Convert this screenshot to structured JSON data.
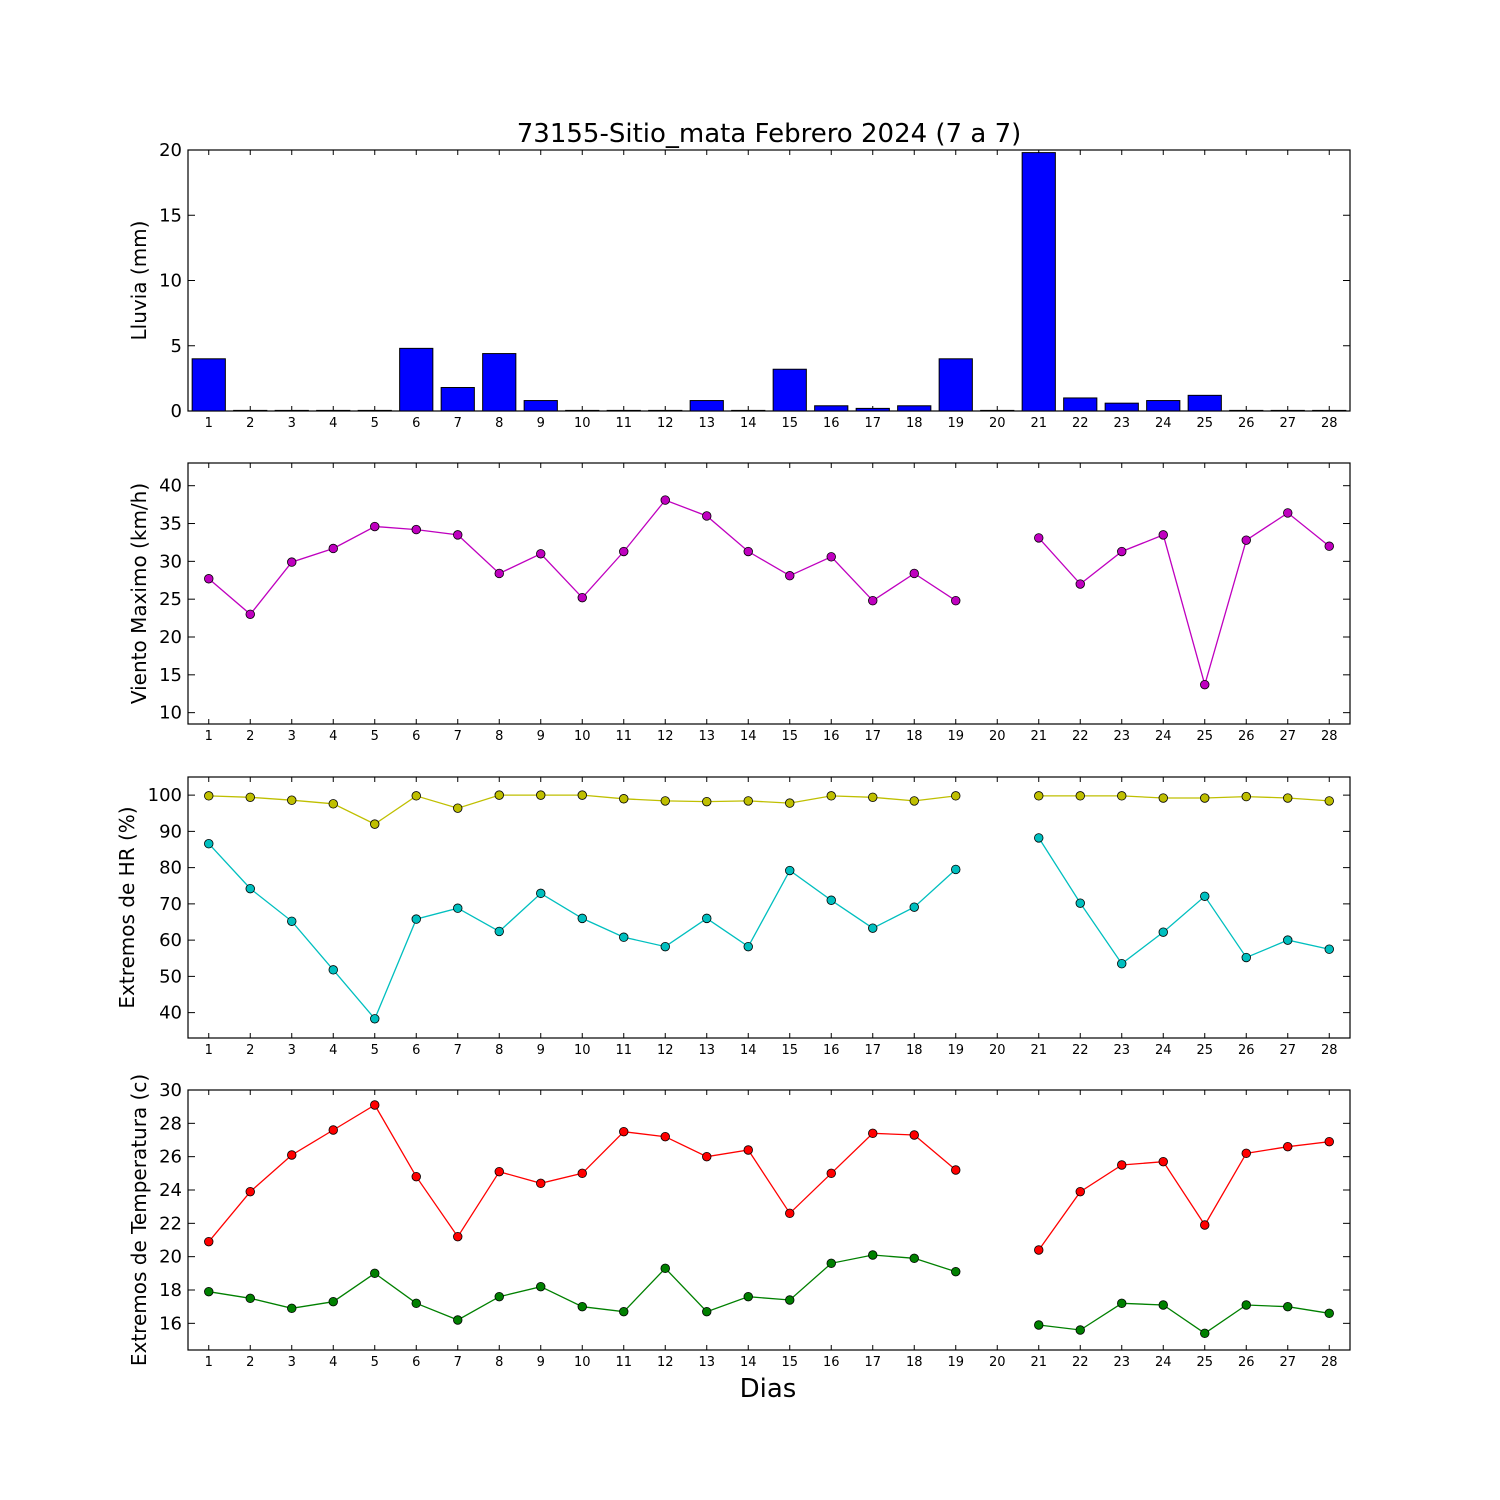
{
  "title": "73155-Sitio_mata Febrero 2024  (7 a 7)",
  "xlabel": "Dias",
  "chart_data": [
    {
      "type": "bar",
      "ylabel": "Lluvia (mm)",
      "ylim": [
        0,
        20
      ],
      "yticks": [
        0,
        5,
        10,
        15,
        20
      ],
      "xlim": [
        0.5,
        28.5
      ],
      "categories": [
        "1",
        "2",
        "3",
        "4",
        "5",
        "6",
        "7",
        "8",
        "9",
        "10",
        "11",
        "12",
        "13",
        "14",
        "15",
        "16",
        "17",
        "18",
        "19",
        "20",
        "21",
        "22",
        "23",
        "24",
        "25",
        "26",
        "27",
        "28"
      ],
      "series": [
        {
          "color": "#0000ff",
          "values": [
            4.0,
            0,
            0,
            0,
            0,
            4.8,
            1.8,
            4.4,
            0.8,
            0,
            0,
            0,
            0.8,
            0,
            3.2,
            0.4,
            0.2,
            0.4,
            4.0,
            0,
            19.8,
            1.0,
            0.6,
            0.8,
            1.2,
            0,
            0,
            0
          ]
        }
      ]
    },
    {
      "type": "line",
      "ylabel": "Viento Maximo (km/h)",
      "ylim": [
        8.5,
        43
      ],
      "yticks": [
        10,
        15,
        20,
        25,
        30,
        35,
        40
      ],
      "xlim": [
        0.5,
        28.5
      ],
      "x": [
        "1",
        "2",
        "3",
        "4",
        "5",
        "6",
        "7",
        "8",
        "9",
        "10",
        "11",
        "12",
        "13",
        "14",
        "15",
        "16",
        "17",
        "18",
        "19",
        "20",
        "21",
        "22",
        "23",
        "24",
        "25",
        "26",
        "27",
        "28"
      ],
      "series": [
        {
          "color": "#bf00bf",
          "values": [
            27.7,
            23.0,
            29.9,
            31.7,
            34.6,
            34.2,
            33.5,
            28.4,
            31.0,
            25.2,
            31.3,
            38.1,
            36.0,
            31.3,
            28.1,
            30.6,
            24.8,
            28.4,
            24.8,
            null,
            33.1,
            27.0,
            31.3,
            33.5,
            13.7,
            32.8,
            36.4,
            32.0
          ]
        }
      ]
    },
    {
      "type": "line",
      "ylabel": "Extremos de HR (%)",
      "ylim": [
        33,
        105
      ],
      "yticks": [
        40,
        50,
        60,
        70,
        80,
        90,
        100
      ],
      "xlim": [
        0.5,
        28.5
      ],
      "x": [
        "1",
        "2",
        "3",
        "4",
        "5",
        "6",
        "7",
        "8",
        "9",
        "10",
        "11",
        "12",
        "13",
        "14",
        "15",
        "16",
        "17",
        "18",
        "19",
        "20",
        "21",
        "22",
        "23",
        "24",
        "25",
        "26",
        "27",
        "28"
      ],
      "series": [
        {
          "color": "#bfbf00",
          "values": [
            99.8,
            99.4,
            98.6,
            97.6,
            92.0,
            99.8,
            96.4,
            100.0,
            100.0,
            100.0,
            99.0,
            98.4,
            98.2,
            98.4,
            97.8,
            99.8,
            99.4,
            98.4,
            99.8,
            null,
            99.8,
            99.8,
            99.8,
            99.2,
            99.2,
            99.6,
            99.2,
            98.4
          ]
        },
        {
          "color": "#00bfbf",
          "values": [
            86.6,
            74.2,
            65.2,
            51.8,
            38.3,
            65.8,
            68.8,
            62.4,
            72.9,
            66.0,
            60.8,
            58.2,
            66.0,
            58.2,
            79.2,
            71.0,
            63.3,
            69.1,
            79.5,
            null,
            88.2,
            70.2,
            53.5,
            62.2,
            72.1,
            55.2,
            60.0,
            57.5
          ]
        }
      ]
    },
    {
      "type": "line",
      "ylabel": "Extremos de Temperatura (c)",
      "ylim": [
        14.4,
        30
      ],
      "yticks": [
        16,
        18,
        20,
        22,
        24,
        26,
        28,
        30
      ],
      "xlim": [
        0.5,
        28.5
      ],
      "x": [
        "1",
        "2",
        "3",
        "4",
        "5",
        "6",
        "7",
        "8",
        "9",
        "10",
        "11",
        "12",
        "13",
        "14",
        "15",
        "16",
        "17",
        "18",
        "19",
        "20",
        "21",
        "22",
        "23",
        "24",
        "25",
        "26",
        "27",
        "28"
      ],
      "series": [
        {
          "color": "#ff0000",
          "values": [
            20.9,
            23.9,
            26.1,
            27.6,
            29.1,
            24.8,
            21.2,
            25.1,
            24.4,
            25.0,
            27.5,
            27.2,
            26.0,
            26.4,
            22.6,
            25.0,
            27.4,
            27.3,
            25.2,
            null,
            20.4,
            23.9,
            25.5,
            25.7,
            21.9,
            26.2,
            26.6,
            26.9
          ]
        },
        {
          "color": "#008000",
          "values": [
            17.9,
            17.5,
            16.9,
            17.3,
            19.0,
            17.2,
            16.2,
            17.6,
            18.2,
            17.0,
            16.7,
            19.3,
            16.7,
            17.6,
            17.4,
            19.6,
            20.1,
            19.9,
            19.1,
            null,
            15.9,
            15.6,
            17.2,
            17.1,
            15.4,
            17.1,
            17.0,
            16.6
          ]
        }
      ]
    }
  ]
}
